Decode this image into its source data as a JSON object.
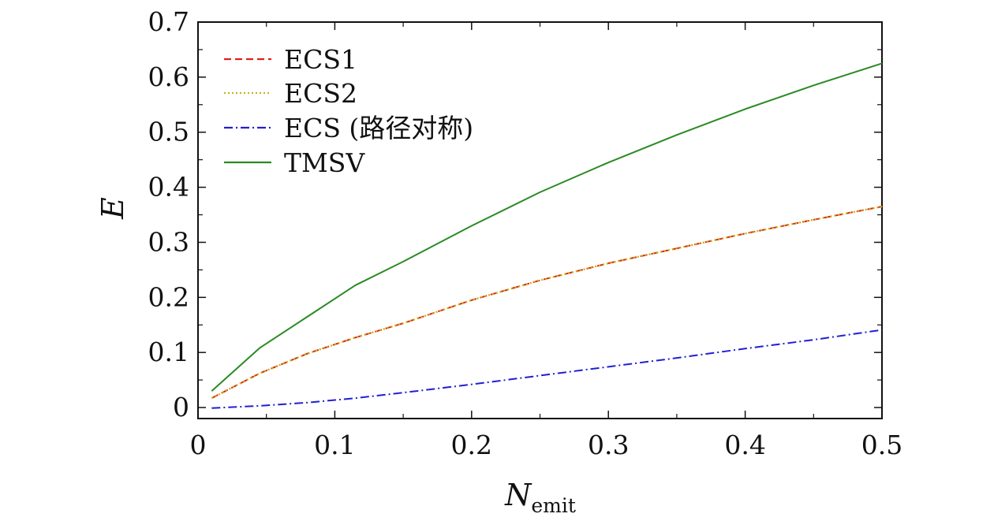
{
  "chart_data": {
    "type": "line",
    "title": "",
    "xlabel": "N",
    "xlabel_subscript": "emit",
    "ylabel": "E",
    "xlim": [
      0,
      0.5
    ],
    "ylim": [
      -0.02,
      0.7
    ],
    "x_ticks": [
      0,
      0.1,
      0.2,
      0.3,
      0.4,
      0.5
    ],
    "x_tick_labels": [
      "0",
      "0.1",
      "0.2",
      "0.3",
      "0.4",
      "0.5"
    ],
    "y_ticks": [
      0,
      0.1,
      0.2,
      0.3,
      0.4,
      0.5,
      0.6,
      0.7
    ],
    "y_tick_labels": [
      "0",
      "0.1",
      "0.2",
      "0.3",
      "0.4",
      "0.5",
      "0.6",
      "0.7"
    ],
    "grid": false,
    "legend_position": "top-left",
    "x": [
      0.01,
      0.045,
      0.08,
      0.115,
      0.15,
      0.2,
      0.25,
      0.3,
      0.35,
      0.4,
      0.45,
      0.5
    ],
    "series": [
      {
        "name": "ECS1",
        "color": "#e0201a",
        "dash": "dashed",
        "values": [
          0.017,
          0.062,
          0.098,
          0.127,
          0.153,
          0.195,
          0.231,
          0.262,
          0.289,
          0.316,
          0.341,
          0.365
        ]
      },
      {
        "name": "ECS2",
        "color": "#c8b21e",
        "dash": "dotted",
        "values": [
          0.017,
          0.062,
          0.098,
          0.127,
          0.153,
          0.195,
          0.231,
          0.262,
          0.289,
          0.316,
          0.341,
          0.365
        ]
      },
      {
        "name": "ECS (路径对称)",
        "color": "#1f1fd6",
        "dash": "dashdot",
        "values": [
          -0.001,
          0.003,
          0.009,
          0.017,
          0.027,
          0.042,
          0.058,
          0.074,
          0.09,
          0.107,
          0.123,
          0.141
        ]
      },
      {
        "name": "TMSV",
        "color": "#2a8a23",
        "dash": "solid",
        "values": [
          0.03,
          0.108,
          0.165,
          0.222,
          0.265,
          0.33,
          0.391,
          0.445,
          0.495,
          0.542,
          0.585,
          0.625
        ]
      }
    ]
  }
}
